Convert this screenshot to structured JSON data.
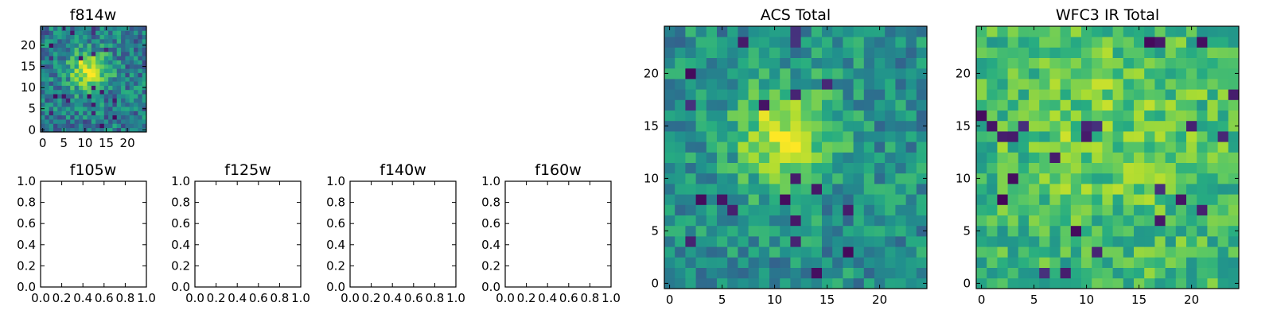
{
  "chart_data": [
    {
      "type": "heatmap",
      "title": "f814w",
      "grid_size": 25,
      "xlim": [
        -0.5,
        24.5
      ],
      "ylim": [
        -0.5,
        24.5
      ],
      "xticks": [
        0,
        5,
        10,
        15,
        20
      ],
      "xtick_labels": [
        "0",
        "5",
        "10",
        "15",
        "20"
      ],
      "yticks": [
        0,
        5,
        10,
        15,
        20
      ],
      "ytick_labels": [
        "0",
        "5",
        "10",
        "15",
        "20"
      ],
      "colormap": "viridis",
      "features": {
        "peak_center": [
          11,
          14
        ],
        "peak_width": 3.2,
        "peak_amplitude": 0.55,
        "baseline": 0.42,
        "noise": 0.22,
        "seed": 11
      }
    },
    {
      "type": "empty",
      "title": "f105w",
      "xlim": [
        0,
        1
      ],
      "ylim": [
        0,
        1
      ],
      "xtick_labels": [
        "0.0",
        "0.2",
        "0.4",
        "0.6",
        "0.8",
        "1.0"
      ],
      "ytick_labels": [
        "0.0",
        "0.2",
        "0.4",
        "0.6",
        "0.8",
        "1.0"
      ]
    },
    {
      "type": "empty",
      "title": "f125w",
      "xlim": [
        0,
        1
      ],
      "ylim": [
        0,
        1
      ],
      "xtick_labels": [
        "0.0",
        "0.2",
        "0.4",
        "0.6",
        "0.8",
        "1.0"
      ],
      "ytick_labels": [
        "0.0",
        "0.2",
        "0.4",
        "0.6",
        "0.8",
        "1.0"
      ]
    },
    {
      "type": "empty",
      "title": "f140w",
      "xlim": [
        0,
        1
      ],
      "ylim": [
        0,
        1
      ],
      "xtick_labels": [
        "0.0",
        "0.2",
        "0.4",
        "0.6",
        "0.8",
        "1.0"
      ],
      "ytick_labels": [
        "0.0",
        "0.2",
        "0.4",
        "0.6",
        "0.8",
        "1.0"
      ]
    },
    {
      "type": "empty",
      "title": "f160w",
      "xlim": [
        0,
        1
      ],
      "ylim": [
        0,
        1
      ],
      "xtick_labels": [
        "0.0",
        "0.2",
        "0.4",
        "0.6",
        "0.8",
        "1.0"
      ],
      "ytick_labels": [
        "0.0",
        "0.2",
        "0.4",
        "0.6",
        "0.8",
        "1.0"
      ]
    },
    {
      "type": "heatmap",
      "title": "ACS Total",
      "grid_size": 25,
      "xlim": [
        -0.5,
        24.5
      ],
      "ylim": [
        -0.5,
        24.5
      ],
      "xticks": [
        0,
        5,
        10,
        15,
        20
      ],
      "xtick_labels": [
        "0",
        "5",
        "10",
        "15",
        "20"
      ],
      "yticks": [
        0,
        5,
        10,
        15,
        20
      ],
      "ytick_labels": [
        "0",
        "5",
        "10",
        "15",
        "20"
      ],
      "colormap": "viridis",
      "features": {
        "peak_center": [
          11,
          14
        ],
        "peak_width": 3.3,
        "peak_amplitude": 0.45,
        "baseline": 0.5,
        "noise": 0.18,
        "seed": 11
      }
    },
    {
      "type": "heatmap",
      "title": "WFC3 IR Total",
      "grid_size": 25,
      "xlim": [
        -0.5,
        24.5
      ],
      "ylim": [
        -0.5,
        24.5
      ],
      "xticks": [
        0,
        5,
        10,
        15,
        20
      ],
      "xtick_labels": [
        "0",
        "5",
        "10",
        "15",
        "20"
      ],
      "yticks": [
        0,
        5,
        10,
        15,
        20
      ],
      "ytick_labels": [
        "0",
        "5",
        "10",
        "15",
        "20"
      ],
      "colormap": "viridis",
      "features": {
        "peak_center": [
          12,
          15
        ],
        "peak_width": 7,
        "peak_amplitude": 0.12,
        "baseline": 0.66,
        "noise": 0.17,
        "seed": 23
      }
    }
  ]
}
